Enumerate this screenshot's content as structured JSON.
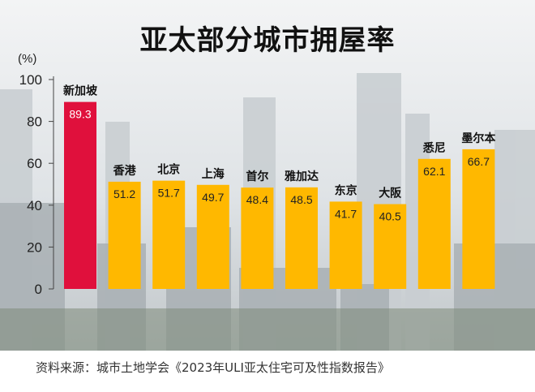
{
  "title": "亚太部分城市拥屋率",
  "unit_label": "(%)",
  "source": "资料来源：城市土地学会《2023年ULI亚太住宅可及性指数报告》",
  "colors": {
    "highlight": "#e0103c",
    "bar": "#ffb800",
    "axis_text": "#222222",
    "city_text": "#111111"
  },
  "chart_data": {
    "type": "bar",
    "title": "亚太部分城市拥屋率",
    "ylabel": "(%)",
    "ylim": [
      0,
      100
    ],
    "yticks": [
      0,
      20,
      40,
      60,
      80,
      100
    ],
    "categories": [
      "新加坡",
      "香港",
      "北京",
      "上海",
      "首尔",
      "雅加达",
      "东京",
      "大阪",
      "悉尼",
      "墨尔本"
    ],
    "values": [
      89.3,
      51.2,
      51.7,
      49.7,
      48.4,
      48.5,
      41.7,
      40.5,
      62.1,
      66.7
    ],
    "value_labels": [
      "89.3",
      "51.2",
      "51.7",
      "49.7",
      "48.4",
      "48.5",
      "41.7",
      "40.5",
      "62.1",
      "66.7"
    ],
    "highlight_index": 0,
    "grid": false,
    "legend": "none"
  }
}
